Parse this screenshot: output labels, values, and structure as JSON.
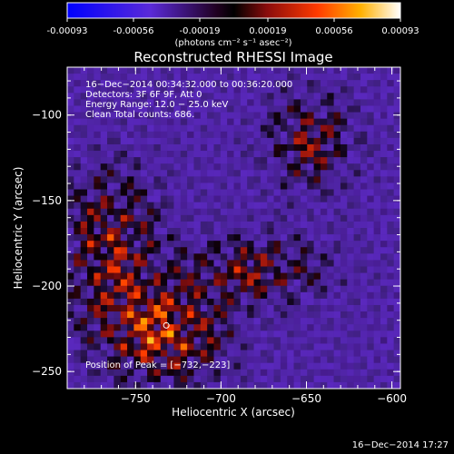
{
  "colorbar": {
    "tick_labels": [
      "-0.00093",
      "-0.00056",
      "-0.00019",
      "0.00019",
      "0.00056",
      "0.00093"
    ],
    "tick_values": [
      -0.00093,
      -0.00056,
      -0.00019,
      0.00019,
      0.00056,
      0.00093
    ],
    "range": [
      -0.00093,
      0.00093
    ],
    "unit_label": "(photons cm⁻² s⁻¹ asec⁻²)",
    "colors": [
      "#0000ff",
      "#6a2cc8",
      "#000000",
      "#a01010",
      "#ff4000",
      "#ffb000",
      "#ffffff"
    ]
  },
  "chart_data": {
    "type": "heatmap",
    "title": "Reconstructed RHESSI Image",
    "xlabel": "Heliocentric X (arcsec)",
    "ylabel": "Heliocentric Y (arcsec)",
    "xlim": [
      -790,
      -595
    ],
    "ylim": [
      -260,
      -72
    ],
    "x_ticks": [
      -750,
      -700,
      -650,
      -600
    ],
    "x_tick_labels": [
      "−750",
      "−700",
      "−650",
      "−600"
    ],
    "y_ticks": [
      -250,
      -200,
      -150,
      -100
    ],
    "y_tick_labels": [
      "−250",
      "−200",
      "−150",
      "−100"
    ],
    "peak_position": [
      -732,
      -223
    ],
    "info_lines": [
      "16−Dec−2014 00:34:32.000 to 00:36:20.000",
      "Detectors: 3F 6F 9F, Att 0",
      "Energy Range: 12.0 − 25.0 keV",
      "Clean     Total counts: 686."
    ],
    "peak_label": "Position of Peak = [−732,−223]"
  },
  "timestamp": "16−Dec−2014 17:27"
}
